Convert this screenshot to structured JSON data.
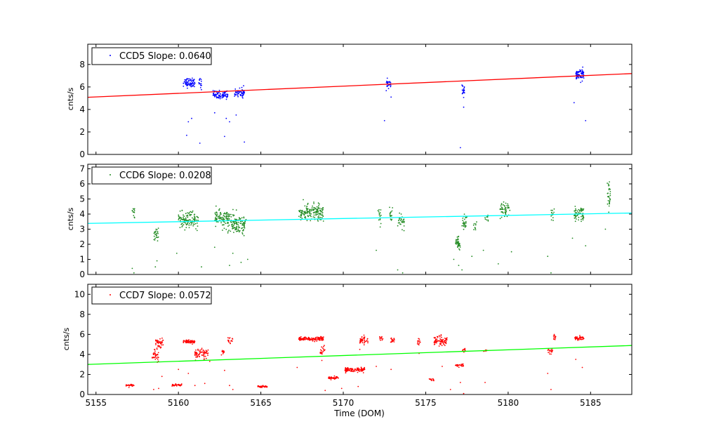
{
  "chart_data": {
    "type": "scatter",
    "xlabel": "Time (DOM)",
    "xlim": [
      5154.5,
      5187.5
    ],
    "xticks": [
      5155,
      5160,
      5165,
      5170,
      5175,
      5180,
      5185
    ],
    "xtick_labels": [
      "5155",
      "5160",
      "5165",
      "5170",
      "5175",
      "5180",
      "5185"
    ],
    "panels": [
      {
        "id": "ccd5",
        "ylabel": "cnts/s",
        "ylim": [
          0,
          9.8
        ],
        "yticks": [
          0,
          2,
          4,
          6,
          8
        ],
        "ytick_labels": [
          "0",
          "2",
          "4",
          "6",
          "8"
        ],
        "legend": "CCD5 Slope: 0.0640",
        "point_color": "#0000ff",
        "fit_color": "#ff0000",
        "fit_line": {
          "x": [
            5154.5,
            5187.5
          ],
          "y": [
            5.08,
            7.19
          ]
        },
        "clusters": [
          {
            "x": [
              5160.3,
              5161.0
            ],
            "y": 6.4,
            "spread": 0.35,
            "n": 70
          },
          {
            "x": [
              5161.2,
              5161.4
            ],
            "y": 6.3,
            "spread": 0.4,
            "n": 15
          },
          {
            "x": [
              5162.1,
              5163.0
            ],
            "y": 5.3,
            "spread": 0.3,
            "n": 80
          },
          {
            "x": [
              5163.4,
              5164.0
            ],
            "y": 5.5,
            "spread": 0.35,
            "n": 60
          },
          {
            "x": [
              5172.6,
              5172.9
            ],
            "y": 6.3,
            "spread": 0.3,
            "n": 25
          },
          {
            "x": [
              5177.2,
              5177.4
            ],
            "y": 5.6,
            "spread": 0.35,
            "n": 20
          },
          {
            "x": [
              5184.1,
              5184.6
            ],
            "y": 7.1,
            "spread": 0.4,
            "n": 70
          }
        ],
        "outliers": [
          [
            5160.5,
            1.7
          ],
          [
            5160.6,
            2.9
          ],
          [
            5160.8,
            3.2
          ],
          [
            5161.3,
            1.0
          ],
          [
            5162.2,
            3.7
          ],
          [
            5162.8,
            1.6
          ],
          [
            5162.9,
            3.2
          ],
          [
            5163.1,
            2.9
          ],
          [
            5163.5,
            3.5
          ],
          [
            5164.0,
            1.1
          ],
          [
            5172.5,
            3.0
          ],
          [
            5172.9,
            5.1
          ],
          [
            5177.1,
            0.6
          ],
          [
            5177.3,
            4.2
          ],
          [
            5184.0,
            4.6
          ],
          [
            5184.7,
            3.0
          ]
        ]
      },
      {
        "id": "ccd6",
        "ylabel": "cnts/s",
        "ylim": [
          0,
          7.3
        ],
        "yticks": [
          0,
          1,
          2,
          3,
          4,
          5,
          6,
          7
        ],
        "ytick_labels": [
          "0",
          "1",
          "2",
          "3",
          "4",
          "5",
          "6",
          "7"
        ],
        "legend": "CCD6 Slope: 0.0208",
        "point_color": "#228b22",
        "fit_color": "#00ffff",
        "fit_line": {
          "x": [
            5154.5,
            5187.5
          ],
          "y": [
            3.38,
            4.07
          ]
        },
        "clusters": [
          {
            "x": [
              5157.2,
              5157.35
            ],
            "y": 4.0,
            "spread": 0.4,
            "n": 12
          },
          {
            "x": [
              5158.5,
              5158.8
            ],
            "y": 2.6,
            "spread": 0.5,
            "n": 25
          },
          {
            "x": [
              5160.0,
              5161.2
            ],
            "y": 3.6,
            "spread": 0.45,
            "n": 120
          },
          {
            "x": [
              5162.2,
              5163.0
            ],
            "y": 3.7,
            "spread": 0.45,
            "n": 90
          },
          {
            "x": [
              5163.0,
              5163.6
            ],
            "y": 3.4,
            "spread": 0.6,
            "n": 70
          },
          {
            "x": [
              5163.6,
              5164.1
            ],
            "y": 3.3,
            "spread": 0.5,
            "n": 50
          },
          {
            "x": [
              5167.3,
              5168.8
            ],
            "y": 4.1,
            "spread": 0.45,
            "n": 160
          },
          {
            "x": [
              5172.1,
              5172.3
            ],
            "y": 4.0,
            "spread": 0.5,
            "n": 15
          },
          {
            "x": [
              5172.8,
              5173.0
            ],
            "y": 4.0,
            "spread": 0.5,
            "n": 15
          },
          {
            "x": [
              5173.3,
              5173.7
            ],
            "y": 3.5,
            "spread": 0.5,
            "n": 30
          },
          {
            "x": [
              5176.8,
              5177.1
            ],
            "y": 2.1,
            "spread": 0.3,
            "n": 40
          },
          {
            "x": [
              5177.2,
              5177.5
            ],
            "y": 3.5,
            "spread": 0.45,
            "n": 30
          },
          {
            "x": [
              5177.9,
              5178.1
            ],
            "y": 3.2,
            "spread": 0.4,
            "n": 10
          },
          {
            "x": [
              5178.6,
              5178.8
            ],
            "y": 3.6,
            "spread": 0.3,
            "n": 10
          },
          {
            "x": [
              5179.5,
              5180.1
            ],
            "y": 4.2,
            "spread": 0.45,
            "n": 50
          },
          {
            "x": [
              5182.6,
              5182.8
            ],
            "y": 4.0,
            "spread": 0.5,
            "n": 15
          },
          {
            "x": [
              5184.0,
              5184.6
            ],
            "y": 4.0,
            "spread": 0.4,
            "n": 60
          },
          {
            "x": [
              5186.0,
              5186.2
            ],
            "y": 5.1,
            "spread": 0.9,
            "n": 30
          }
        ],
        "outliers": [
          [
            5157.2,
            0.4
          ],
          [
            5157.3,
            0.1
          ],
          [
            5158.6,
            0.5
          ],
          [
            5158.7,
            0.9
          ],
          [
            5159.9,
            1.4
          ],
          [
            5161.4,
            0.5
          ],
          [
            5162.2,
            1.8
          ],
          [
            5163.1,
            0.6
          ],
          [
            5163.3,
            1.4
          ],
          [
            5163.8,
            0.8
          ],
          [
            5164.2,
            1.0
          ],
          [
            5172.0,
            1.6
          ],
          [
            5173.3,
            0.3
          ],
          [
            5173.6,
            0.1
          ],
          [
            5176.7,
            1.0
          ],
          [
            5177.0,
            0.6
          ],
          [
            5177.2,
            0.3
          ],
          [
            5177.8,
            1.2
          ],
          [
            5178.5,
            1.6
          ],
          [
            5179.4,
            0.7
          ],
          [
            5180.2,
            1.5
          ],
          [
            5182.4,
            1.2
          ],
          [
            5182.6,
            0.1
          ],
          [
            5183.9,
            2.4
          ],
          [
            5184.7,
            1.9
          ],
          [
            5185.9,
            3.0
          ]
        ]
      },
      {
        "id": "ccd7",
        "ylabel": "cnts/s",
        "ylim": [
          0,
          11
        ],
        "yticks": [
          0,
          2,
          4,
          6,
          8,
          10
        ],
        "ytick_labels": [
          "0",
          "2",
          "4",
          "6",
          "8",
          "10"
        ],
        "legend": "CCD7 Slope: 0.0572",
        "point_color": "#ff0000",
        "fit_color": "#00ff00",
        "fit_line": {
          "x": [
            5154.5,
            5187.5
          ],
          "y": [
            3.0,
            4.89
          ]
        },
        "clusters": [
          {
            "x": [
              5156.8,
              5157.3
            ],
            "y": 0.9,
            "spread": 0.08,
            "n": 25
          },
          {
            "x": [
              5158.4,
              5158.8
            ],
            "y": 4.0,
            "spread": 0.5,
            "n": 35
          },
          {
            "x": [
              5158.6,
              5159.1
            ],
            "y": 5.1,
            "spread": 0.4,
            "n": 40
          },
          {
            "x": [
              5159.6,
              5160.2
            ],
            "y": 0.95,
            "spread": 0.08,
            "n": 35
          },
          {
            "x": [
              5160.3,
              5161.0
            ],
            "y": 5.25,
            "spread": 0.15,
            "n": 60
          },
          {
            "x": [
              5161.0,
              5161.8
            ],
            "y": 4.1,
            "spread": 0.4,
            "n": 70
          },
          {
            "x": [
              5162.6,
              5162.8
            ],
            "y": 4.25,
            "spread": 0.15,
            "n": 12
          },
          {
            "x": [
              5163.0,
              5163.3
            ],
            "y": 5.4,
            "spread": 0.25,
            "n": 15
          },
          {
            "x": [
              5164.8,
              5165.4
            ],
            "y": 0.8,
            "spread": 0.08,
            "n": 35
          },
          {
            "x": [
              5167.3,
              5168.8
            ],
            "y": 5.55,
            "spread": 0.15,
            "n": 140
          },
          {
            "x": [
              5168.6,
              5168.9
            ],
            "y": 4.5,
            "spread": 0.4,
            "n": 20
          },
          {
            "x": [
              5169.1,
              5169.7
            ],
            "y": 1.65,
            "spread": 0.12,
            "n": 45
          },
          {
            "x": [
              5170.1,
              5171.3
            ],
            "y": 2.45,
            "spread": 0.2,
            "n": 110
          },
          {
            "x": [
              5171.0,
              5171.5
            ],
            "y": 5.4,
            "spread": 0.35,
            "n": 40
          },
          {
            "x": [
              5172.2,
              5172.4
            ],
            "y": 5.6,
            "spread": 0.25,
            "n": 15
          },
          {
            "x": [
              5172.8,
              5173.1
            ],
            "y": 5.4,
            "spread": 0.2,
            "n": 20
          },
          {
            "x": [
              5174.5,
              5174.7
            ],
            "y": 5.2,
            "spread": 0.35,
            "n": 12
          },
          {
            "x": [
              5175.2,
              5175.5
            ],
            "y": 1.5,
            "spread": 0.12,
            "n": 15
          },
          {
            "x": [
              5175.5,
              5176.3
            ],
            "y": 5.3,
            "spread": 0.45,
            "n": 80
          },
          {
            "x": [
              5176.8,
              5177.3
            ],
            "y": 2.9,
            "spread": 0.1,
            "n": 30
          },
          {
            "x": [
              5177.2,
              5177.4
            ],
            "y": 4.4,
            "spread": 0.15,
            "n": 12
          },
          {
            "x": [
              5178.5,
              5178.7
            ],
            "y": 4.35,
            "spread": 0.12,
            "n": 8
          },
          {
            "x": [
              5182.4,
              5182.7
            ],
            "y": 4.35,
            "spread": 0.25,
            "n": 15
          },
          {
            "x": [
              5182.7,
              5182.9
            ],
            "y": 5.6,
            "spread": 0.25,
            "n": 12
          },
          {
            "x": [
              5184.0,
              5184.6
            ],
            "y": 5.6,
            "spread": 0.15,
            "n": 40
          }
        ],
        "outliers": [
          [
            5157.0,
            0.7
          ],
          [
            5158.5,
            0.5
          ],
          [
            5158.8,
            0.6
          ],
          [
            5159.0,
            1.8
          ],
          [
            5160.0,
            2.5
          ],
          [
            5160.6,
            2.1
          ],
          [
            5161.0,
            0.9
          ],
          [
            5161.6,
            1.1
          ],
          [
            5161.9,
            3.3
          ],
          [
            5162.8,
            2.4
          ],
          [
            5163.1,
            0.9
          ],
          [
            5163.3,
            0.5
          ],
          [
            5167.2,
            2.7
          ],
          [
            5168.7,
            3.4
          ],
          [
            5168.9,
            0.4
          ],
          [
            5169.9,
            0.6
          ],
          [
            5170.9,
            0.8
          ],
          [
            5171.0,
            4.5
          ],
          [
            5172.0,
            2.8
          ],
          [
            5172.9,
            2.5
          ],
          [
            5174.6,
            4.1
          ],
          [
            5176.0,
            2.8
          ],
          [
            5176.5,
            0.5
          ],
          [
            5177.1,
            1.2
          ],
          [
            5177.3,
            0.1
          ],
          [
            5178.6,
            1.2
          ],
          [
            5182.4,
            2.1
          ],
          [
            5182.6,
            0.5
          ],
          [
            5184.1,
            3.5
          ],
          [
            5184.5,
            2.7
          ]
        ]
      }
    ]
  }
}
